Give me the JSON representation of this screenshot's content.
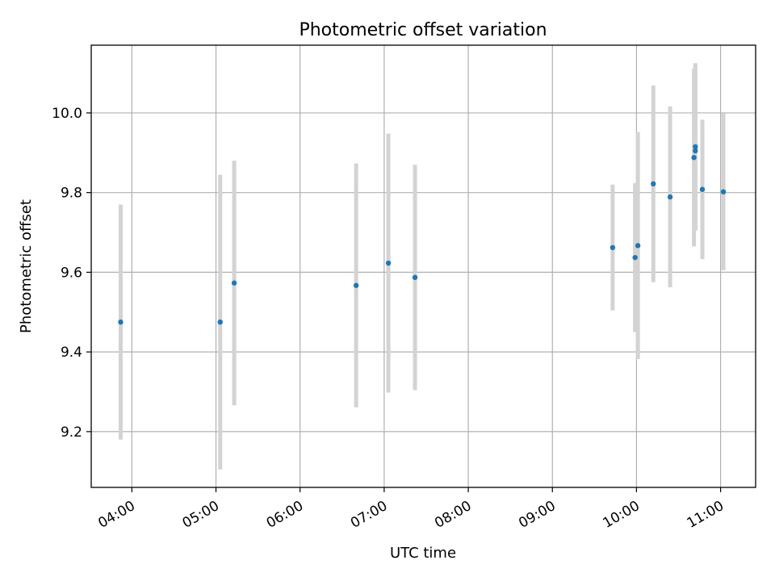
{
  "chart_data": {
    "type": "scatter",
    "title": "Photometric offset variation",
    "xlabel": "UTC time",
    "ylabel": "Photometric offset",
    "x_tick_labels": [
      "04:00",
      "05:00",
      "06:00",
      "07:00",
      "08:00",
      "09:00",
      "10:00",
      "11:00"
    ],
    "y_tick_labels": [
      "9.2",
      "9.4",
      "9.6",
      "9.8",
      "10.0"
    ],
    "x_ticks": [
      "04:00",
      "05:00",
      "06:00",
      "07:00",
      "08:00",
      "09:00",
      "10:00",
      "11:00"
    ],
    "y_ticks": [
      9.2,
      9.4,
      9.6,
      9.8,
      10.0
    ],
    "xlim": [
      "03:31",
      "11:25"
    ],
    "ylim": [
      9.06,
      10.17
    ],
    "grid": true,
    "marker_color": "#1f77b4",
    "errorbar_color": "#d3d3d3",
    "points": [
      {
        "x": "03:52",
        "y": 9.475,
        "yerr": 0.295
      },
      {
        "x": "05:03",
        "y": 9.475,
        "yerr": 0.37
      },
      {
        "x": "05:13",
        "y": 9.573,
        "yerr": 0.307
      },
      {
        "x": "06:40",
        "y": 9.567,
        "yerr": 0.306
      },
      {
        "x": "07:03",
        "y": 9.623,
        "yerr": 0.325
      },
      {
        "x": "07:22",
        "y": 9.587,
        "yerr": 0.283
      },
      {
        "x": "09:43",
        "y": 9.662,
        "yerr": 0.158
      },
      {
        "x": "09:59",
        "y": 9.637,
        "yerr": 0.187
      },
      {
        "x": "10:01",
        "y": 9.667,
        "yerr": 0.285
      },
      {
        "x": "10:12",
        "y": 9.822,
        "yerr": 0.247
      },
      {
        "x": "10:24",
        "y": 9.789,
        "yerr": 0.227
      },
      {
        "x": "10:41",
        "y": 9.888,
        "yerr": 0.223
      },
      {
        "x": "10:42",
        "y": 9.905,
        "yerr": 0.2
      },
      {
        "x": "10:42",
        "y": 9.915,
        "yerr": 0.21
      },
      {
        "x": "10:47",
        "y": 9.808,
        "yerr": 0.175
      },
      {
        "x": "11:02",
        "y": 9.802,
        "yerr": 0.197
      }
    ]
  }
}
